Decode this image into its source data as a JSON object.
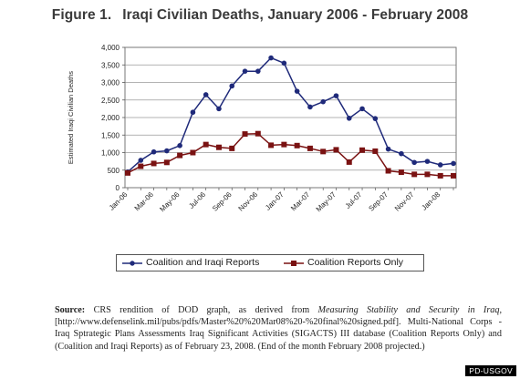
{
  "figure": {
    "number": "Figure 1.",
    "title": "Iraqi Civilian Deaths, January 2006 - February 2008"
  },
  "chart_data": {
    "type": "line",
    "title": "Iraqi Civilian Deaths, January 2006 - February 2008",
    "xlabel": "",
    "ylabel": "Estimated Iraqi Civilian Deaths",
    "ylim": [
      0,
      4000
    ],
    "yticks": [
      0,
      500,
      1000,
      1500,
      2000,
      2500,
      3000,
      3500,
      4000
    ],
    "ytick_labels": [
      "0",
      "500",
      "1,000",
      "1,500",
      "2,000",
      "2,500",
      "3,000",
      "3,500",
      "4,000"
    ],
    "x": [
      "Jan-06",
      "Feb-06",
      "Mar-06",
      "Apr-06",
      "May-06",
      "Jun-06",
      "Jul-06",
      "Aug-06",
      "Sep-06",
      "Oct-06",
      "Nov-06",
      "Dec-06",
      "Jan-07",
      "Feb-07",
      "Mar-07",
      "Apr-07",
      "May-07",
      "Jun-07",
      "Jul-07",
      "Aug-07",
      "Sep-07",
      "Oct-07",
      "Nov-07",
      "Dec-07",
      "Jan-08",
      "Feb-08"
    ],
    "xtick_labels": [
      "Jan-06",
      "Mar-06",
      "May-06",
      "Jul-06",
      "Sep-06",
      "Nov-06",
      "Jan-07",
      "Mar-07",
      "May-07",
      "Jul-07",
      "Sep-07",
      "Nov-07",
      "Jan-08"
    ],
    "grid": "horizontal",
    "legend_position": "bottom",
    "series": [
      {
        "name": "Coalition and Iraqi Reports",
        "color": "#1f2a7a",
        "marker": "circle",
        "values": [
          450,
          780,
          1020,
          1050,
          1200,
          2150,
          2650,
          2250,
          2900,
          3320,
          3320,
          3700,
          3550,
          2750,
          2300,
          2450,
          2620,
          1980,
          2250,
          1970,
          1100,
          970,
          720,
          750,
          650,
          690
        ]
      },
      {
        "name": "Coalition Reports Only",
        "color": "#7a1212",
        "marker": "square",
        "values": [
          420,
          610,
          690,
          720,
          920,
          1000,
          1230,
          1150,
          1120,
          1530,
          1540,
          1210,
          1230,
          1200,
          1120,
          1030,
          1080,
          730,
          1070,
          1040,
          480,
          440,
          380,
          380,
          340,
          340
        ]
      }
    ]
  },
  "source": {
    "label": "Source:",
    "text_1": "CRS rendition of DOD graph, as derived from",
    "italic": "Measuring Stability and Security in Iraq",
    "text_2": ", [http://www.defenselink.mil/pubs/pdfs/Master%20%20Mar08%20-%20final%20signed.pdf]. Multi-National Corps - Iraq Sptrategic Plans Assessments Iraq Significant Activities (SIGACTS) III database (Coalition Reports Only) and (Coalition and Iraqi Reports) as of February 23, 2008.  (End of the month February 2008 projected.)"
  },
  "credit": "PD-USGOV"
}
